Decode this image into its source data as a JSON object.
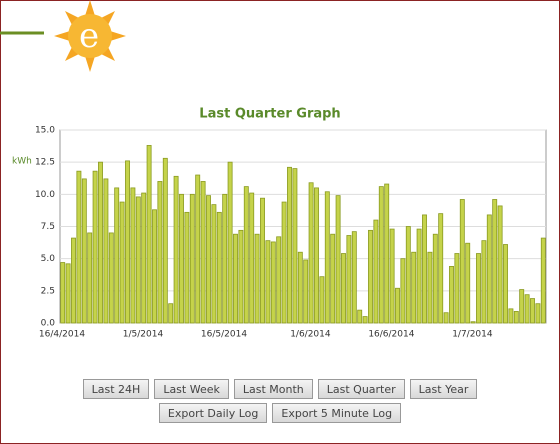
{
  "chart_data": {
    "type": "bar",
    "title": "Last Quarter Graph",
    "y_label": "kWh",
    "categories": [
      "16/4/2014",
      null,
      null,
      null,
      null,
      null,
      null,
      null,
      null,
      null,
      null,
      null,
      null,
      null,
      null,
      "1/5/2014",
      null,
      null,
      null,
      null,
      null,
      null,
      null,
      null,
      null,
      null,
      null,
      null,
      null,
      null,
      "16/5/2014",
      null,
      null,
      null,
      null,
      null,
      null,
      null,
      null,
      null,
      null,
      null,
      null,
      null,
      null,
      null,
      "1/6/2014",
      null,
      null,
      null,
      null,
      null,
      null,
      null,
      null,
      null,
      null,
      null,
      null,
      null,
      null,
      "16/6/2014",
      null,
      null,
      null,
      null,
      null,
      null,
      null,
      null,
      null,
      null,
      null,
      null,
      null,
      null,
      "1/7/2014",
      null,
      null,
      null,
      null,
      null,
      null,
      null,
      null,
      null,
      null,
      null,
      null,
      null
    ],
    "values": [
      4.7,
      4.6,
      6.6,
      11.8,
      11.2,
      7.0,
      11.8,
      12.5,
      11.2,
      7.0,
      10.5,
      9.4,
      12.6,
      10.5,
      9.8,
      10.1,
      13.8,
      8.8,
      11.0,
      12.8,
      1.5,
      11.4,
      10.0,
      8.6,
      10.0,
      11.5,
      11.0,
      9.9,
      9.2,
      8.6,
      10.0,
      12.5,
      6.9,
      7.2,
      10.6,
      10.1,
      6.9,
      9.7,
      6.4,
      6.3,
      6.7,
      9.4,
      12.1,
      12.0,
      5.5,
      4.9,
      10.9,
      10.5,
      3.6,
      10.2,
      6.9,
      9.9,
      5.4,
      6.8,
      7.1,
      1.0,
      0.5,
      7.2,
      8.0,
      10.6,
      10.8,
      7.3,
      2.7,
      5.0,
      7.5,
      5.5,
      7.3,
      8.4,
      5.5,
      6.9,
      8.5,
      0.8,
      4.4,
      5.4,
      9.6,
      6.2,
      0.1,
      5.4,
      6.4,
      8.4,
      9.6,
      9.1,
      6.1,
      1.1,
      0.9,
      2.6,
      2.2,
      1.9,
      1.5,
      6.6
    ],
    "color": "#c5d34a",
    "ylim": [
      0,
      15
    ],
    "yticks": [
      {
        "value": 0,
        "label": "0.0"
      },
      {
        "value": 2.5,
        "label": "2.5"
      },
      {
        "value": 5,
        "label": "5.0"
      },
      {
        "value": 7.5,
        "label": "7.5"
      },
      {
        "value": 10,
        "label": "10.0"
      },
      {
        "value": 12.5,
        "label": "12.5"
      },
      {
        "value": 15,
        "label": "15.0"
      }
    ],
    "grid": true
  },
  "buttons": [
    "Last 24H",
    "Last Week",
    "Last Month",
    "Last Quarter",
    "Last Year",
    "Export Daily Log",
    "Export 5 Minute Log"
  ]
}
